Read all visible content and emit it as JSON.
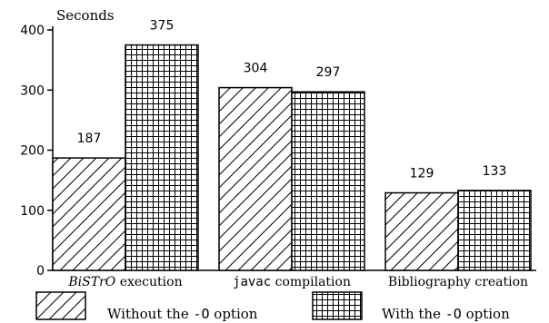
{
  "chart_data": {
    "type": "bar",
    "ylabel": "Seconds",
    "ylim": [
      0,
      400
    ],
    "yticks": [
      0,
      100,
      200,
      300,
      400
    ],
    "categories": [
      {
        "parts": [
          {
            "text": "BiSTrO",
            "style": "italic"
          },
          {
            "text": " execution",
            "style": "serif"
          }
        ]
      },
      {
        "parts": [
          {
            "text": "javac",
            "style": "mono"
          },
          {
            "text": " compilation",
            "style": "serif"
          }
        ]
      },
      {
        "parts": [
          {
            "text": "Bibliography creation",
            "style": "serif"
          }
        ]
      }
    ],
    "series": [
      {
        "name": "Without the -O option",
        "pattern": "hatch-diagonal",
        "values": [
          187,
          304,
          129
        ]
      },
      {
        "name": "With the -O option",
        "pattern": "grid",
        "values": [
          375,
          297,
          133
        ]
      }
    ],
    "legend": [
      {
        "series": 0,
        "parts": [
          {
            "text": "Without the ",
            "style": "serif"
          },
          {
            "text": "-O",
            "style": "mono"
          },
          {
            "text": " option",
            "style": "serif"
          }
        ]
      },
      {
        "series": 1,
        "parts": [
          {
            "text": "With the ",
            "style": "serif"
          },
          {
            "text": "-O",
            "style": "mono"
          },
          {
            "text": " option",
            "style": "serif"
          }
        ]
      }
    ],
    "legend_position": "bottom",
    "grid": false
  }
}
